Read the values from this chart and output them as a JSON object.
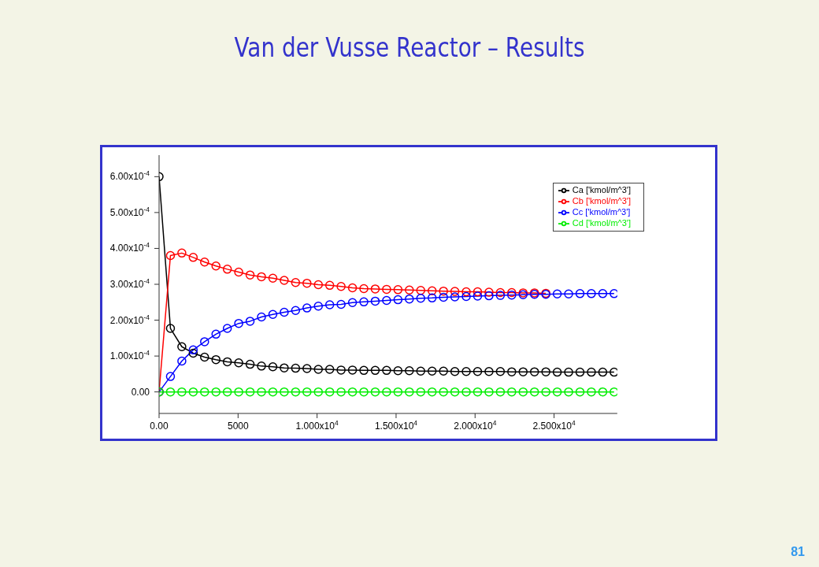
{
  "chart_data": {
    "type": "line",
    "title": "Van der Vusse Reactor – Results",
    "annotations": [
      "81"
    ],
    "x": [
      0,
      720,
      1440,
      2160,
      2880,
      3600,
      4320,
      5040,
      5760,
      6480,
      7200,
      7920,
      8640,
      9360,
      10080,
      10800,
      11520,
      12240,
      12960,
      13680,
      14400,
      15120,
      15840,
      16560,
      17280,
      18000,
      18720,
      19440,
      20160,
      20880,
      21600,
      22320,
      23040,
      23760,
      24480,
      25200,
      25920,
      26640,
      27360,
      28080,
      28800
    ],
    "series": [
      {
        "name": "Ca ['kmol/m^3']",
        "color": "#000000",
        "values": [
          0.0006,
          0.000177,
          0.000126,
          0.000108,
          9.7e-05,
          9e-05,
          8.4e-05,
          8.1e-05,
          7.7e-05,
          7.2e-05,
          7e-05,
          6.7e-05,
          6.6e-05,
          6.5e-05,
          6.3e-05,
          6.3e-05,
          6.1e-05,
          6.1e-05,
          6e-05,
          6e-05,
          6e-05,
          5.9e-05,
          5.9e-05,
          5.8e-05,
          5.8e-05,
          5.8e-05,
          5.7e-05,
          5.7e-05,
          5.7e-05,
          5.7e-05,
          5.7e-05,
          5.6e-05,
          5.6e-05,
          5.6e-05,
          5.6e-05,
          5.5e-05,
          5.5e-05,
          5.5e-05,
          5.5e-05,
          5.5e-05,
          5.5e-05
        ]
      },
      {
        "name": "Cb ['kmol/m^3']",
        "color": "#ff0000",
        "values": [
          0,
          0.00038,
          0.000387,
          0.000375,
          0.000362,
          0.000351,
          0.000342,
          0.000334,
          0.000326,
          0.000321,
          0.000317,
          0.000311,
          0.000305,
          0.000303,
          0.000299,
          0.000297,
          0.000294,
          0.00029,
          0.000288,
          0.000287,
          0.000286,
          0.000285,
          0.000284,
          0.000283,
          0.000282,
          0.000281,
          0.00028,
          0.000279,
          0.000279,
          0.000278,
          0.000277,
          0.000277,
          0.000276,
          0.000276,
          0.000275,
          null,
          null,
          null,
          null,
          null,
          null
        ]
      },
      {
        "name": "Cc ['kmol/m^3']",
        "color": "#0000ff",
        "values": [
          0,
          4.3e-05,
          8.6e-05,
          0.000117,
          0.00014,
          0.000161,
          0.000177,
          0.000191,
          0.000197,
          0.000209,
          0.000216,
          0.000222,
          0.000227,
          0.000234,
          0.000239,
          0.000243,
          0.000244,
          0.000249,
          0.000251,
          0.000253,
          0.000255,
          0.000257,
          0.000259,
          0.000261,
          0.000262,
          0.000264,
          0.000265,
          0.000266,
          0.000267,
          0.000268,
          0.000269,
          0.00027,
          0.000271,
          0.000272,
          0.000272,
          0.000273,
          0.000273,
          0.000274,
          0.000274,
          0.000274,
          0.000274
        ]
      },
      {
        "name": "Cd ['kmol/m^3']",
        "color": "#00ee00",
        "values": [
          0,
          0,
          0,
          0,
          0,
          0,
          0,
          0,
          0,
          0,
          0,
          0,
          0,
          0,
          0,
          0,
          0,
          0,
          0,
          0,
          0,
          0,
          0,
          0,
          0,
          0,
          0,
          0,
          0,
          0,
          0,
          0,
          0,
          0,
          0,
          0,
          0,
          0,
          0,
          0,
          0
        ]
      }
    ],
    "xlim": [
      0,
      29000
    ],
    "xticks": [
      {
        "value": 0,
        "label": "0.00"
      },
      5000,
      {
        "value": 10000,
        "label": "1.000x10$^{4}$"
      },
      {
        "value": 15000,
        "label": "1.500x10$^{4}$"
      },
      {
        "value": 20000,
        "label": "2.000x10$^{4}$"
      },
      {
        "value": 25000,
        "label": "2.500x10$^{4}$"
      }
    ],
    "ylim": [
      -6e-05,
      0.00066
    ],
    "yticks": [
      {
        "value": 0,
        "label": "0.00"
      },
      {
        "value": 0.0001,
        "label": "1.00x10$^{-4}$"
      },
      {
        "value": 0.0002,
        "label": "2.00x10$^{-4}$"
      },
      {
        "value": 0.0003,
        "label": "3.00x10$^{-4}$"
      },
      {
        "value": 0.0004,
        "label": "4.00x10$^{-4}$"
      },
      {
        "value": 0.0005,
        "label": "5.00x10$^{-4}$"
      },
      {
        "value": 0.0006,
        "label": "6.00x10$^{-4}$"
      }
    ],
    "grid": false,
    "legend": "top right",
    "marker": "circle",
    "line_style": "solid"
  }
}
